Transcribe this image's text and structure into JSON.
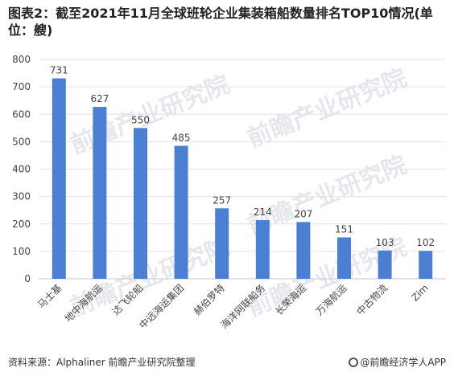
{
  "title": "图表2：截至2021年11月全球班轮企业集装箱船数量排名TOP10情况(单位：艘)",
  "footer": {
    "source": "资料来源：Alphaliner 前瞻产业研究院整理",
    "brand": "@前瞻经济学人APP"
  },
  "watermark": "前瞻产业研究院",
  "colors": {
    "bar": "#4a7fd4",
    "grid": "#e3e3e3",
    "axis": "#c8c8c8",
    "text": "#444444"
  },
  "chart_data": {
    "type": "bar",
    "categories": [
      "马士基",
      "地中海航运",
      "达飞轮船",
      "中远海运集团",
      "赫伯罗特",
      "海洋网联船务",
      "长荣海运",
      "万海航运",
      "中古物流",
      "Zim"
    ],
    "values": [
      731,
      627,
      550,
      485,
      257,
      214,
      207,
      151,
      103,
      102
    ],
    "ylim": [
      0,
      800
    ],
    "yticks": [
      0,
      100,
      200,
      300,
      400,
      500,
      600,
      700,
      800
    ],
    "grid": true,
    "data_labels": true
  }
}
